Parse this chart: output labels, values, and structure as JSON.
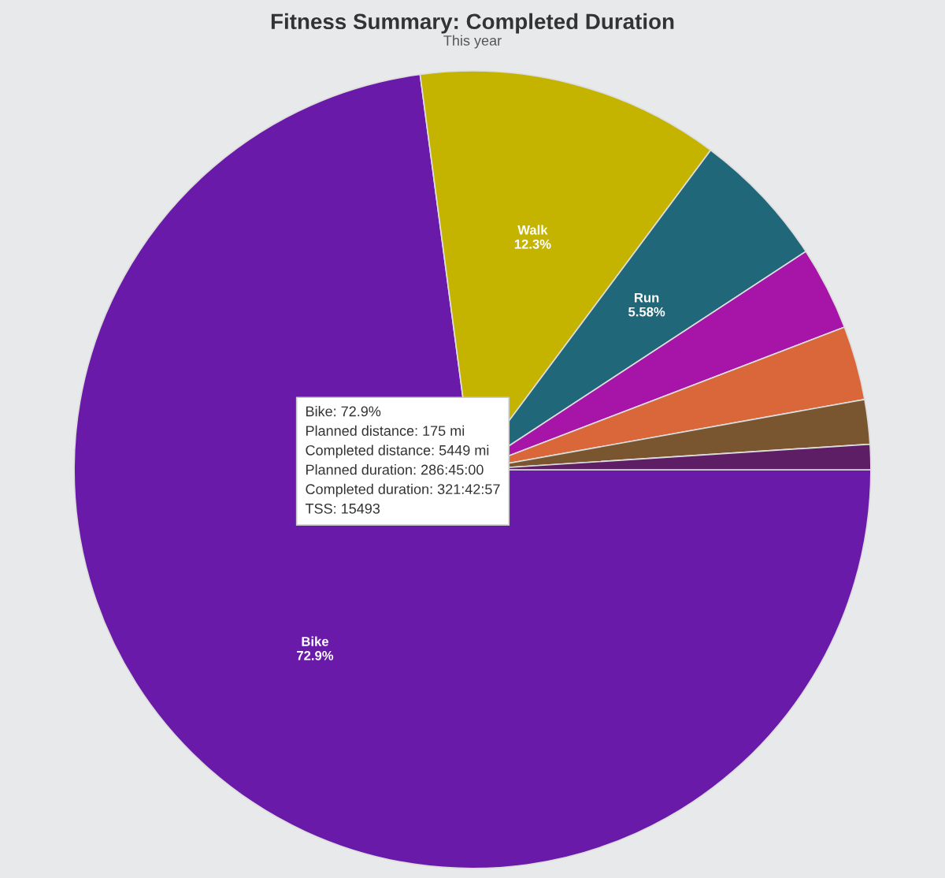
{
  "chart_data": {
    "type": "pie",
    "title": "Fitness Summary: Completed Duration",
    "subtitle": "This year",
    "categories": [
      "Bike",
      "Walk",
      "Run",
      null,
      null,
      null,
      null
    ],
    "values": [
      72.9,
      12.3,
      5.58,
      3.4,
      3.0,
      1.8,
      1.02
    ],
    "value_labels": [
      "72.9%",
      "12.3%",
      "5.58%",
      null,
      null,
      null,
      null
    ],
    "colors": [
      "#6a1aa8",
      "#c4b400",
      "#21677a",
      "#a614a8",
      "#d9673a",
      "#7a5630",
      "#5e1e66"
    ],
    "annotations": [
      "Bike: 72.9%\nPlanned distance: 175 mi\nCompleted distance: 5449 mi\nPlanned duration: 286:45:00\nCompleted duration: 321:42:57\nTSS: 15493"
    ],
    "legend": false
  }
}
